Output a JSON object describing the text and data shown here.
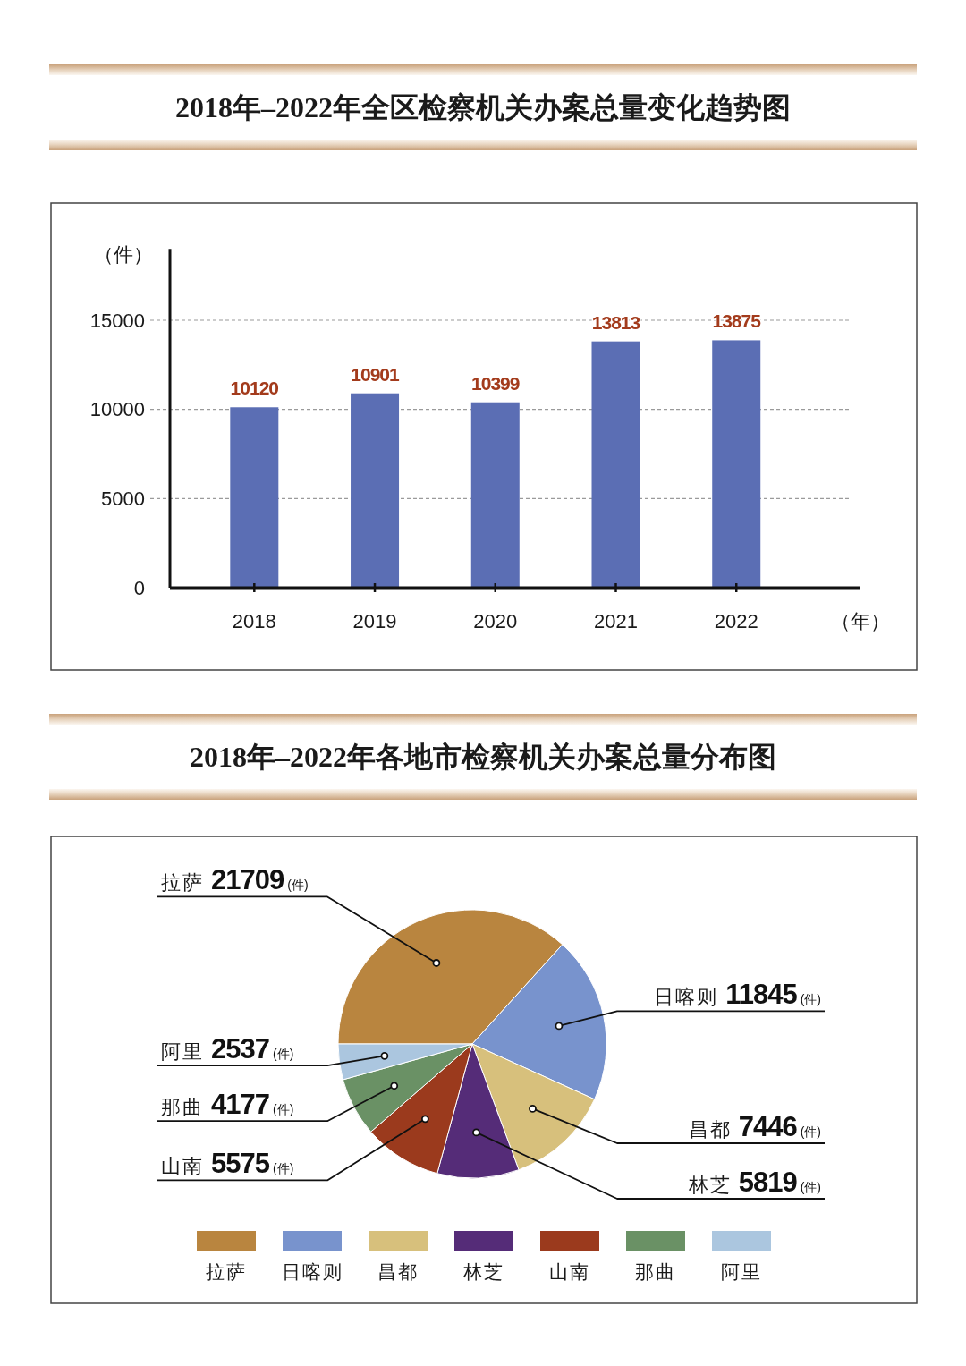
{
  "chart_data": [
    {
      "type": "bar",
      "title": "2018年–2022年全区检察机关办案总量变化趋势图",
      "categories": [
        "2018",
        "2019",
        "2020",
        "2021",
        "2022"
      ],
      "values": [
        10120,
        10901,
        10399,
        13813,
        13875
      ],
      "color": "#5b6eb4",
      "ylim": [
        0,
        19000
      ],
      "yticks": [
        0,
        5000,
        10000,
        15000
      ],
      "ylabel": "（件）",
      "xlabel": "（年）",
      "grid": "y",
      "data_labels": true
    },
    {
      "type": "pie",
      "title": "2018年–2022年各地市检察机关办案总量分布图",
      "categories": [
        "拉萨",
        "日喀则",
        "昌都",
        "林芝",
        "山南",
        "那曲",
        "阿里"
      ],
      "values": [
        21709,
        11845,
        7446,
        5819,
        5575,
        4177,
        2537
      ],
      "colors": [
        "#b9853f",
        "#7893cd",
        "#d7c07c",
        "#552c78",
        "#9b3a1d",
        "#6a9165",
        "#abc6df"
      ],
      "value_labels": [
        "21709(件)",
        "11845(件)",
        "7446(件)",
        "5819(件)",
        "5575(件)",
        "4177(件)",
        "2537(件)"
      ],
      "legend": "bottom"
    }
  ]
}
